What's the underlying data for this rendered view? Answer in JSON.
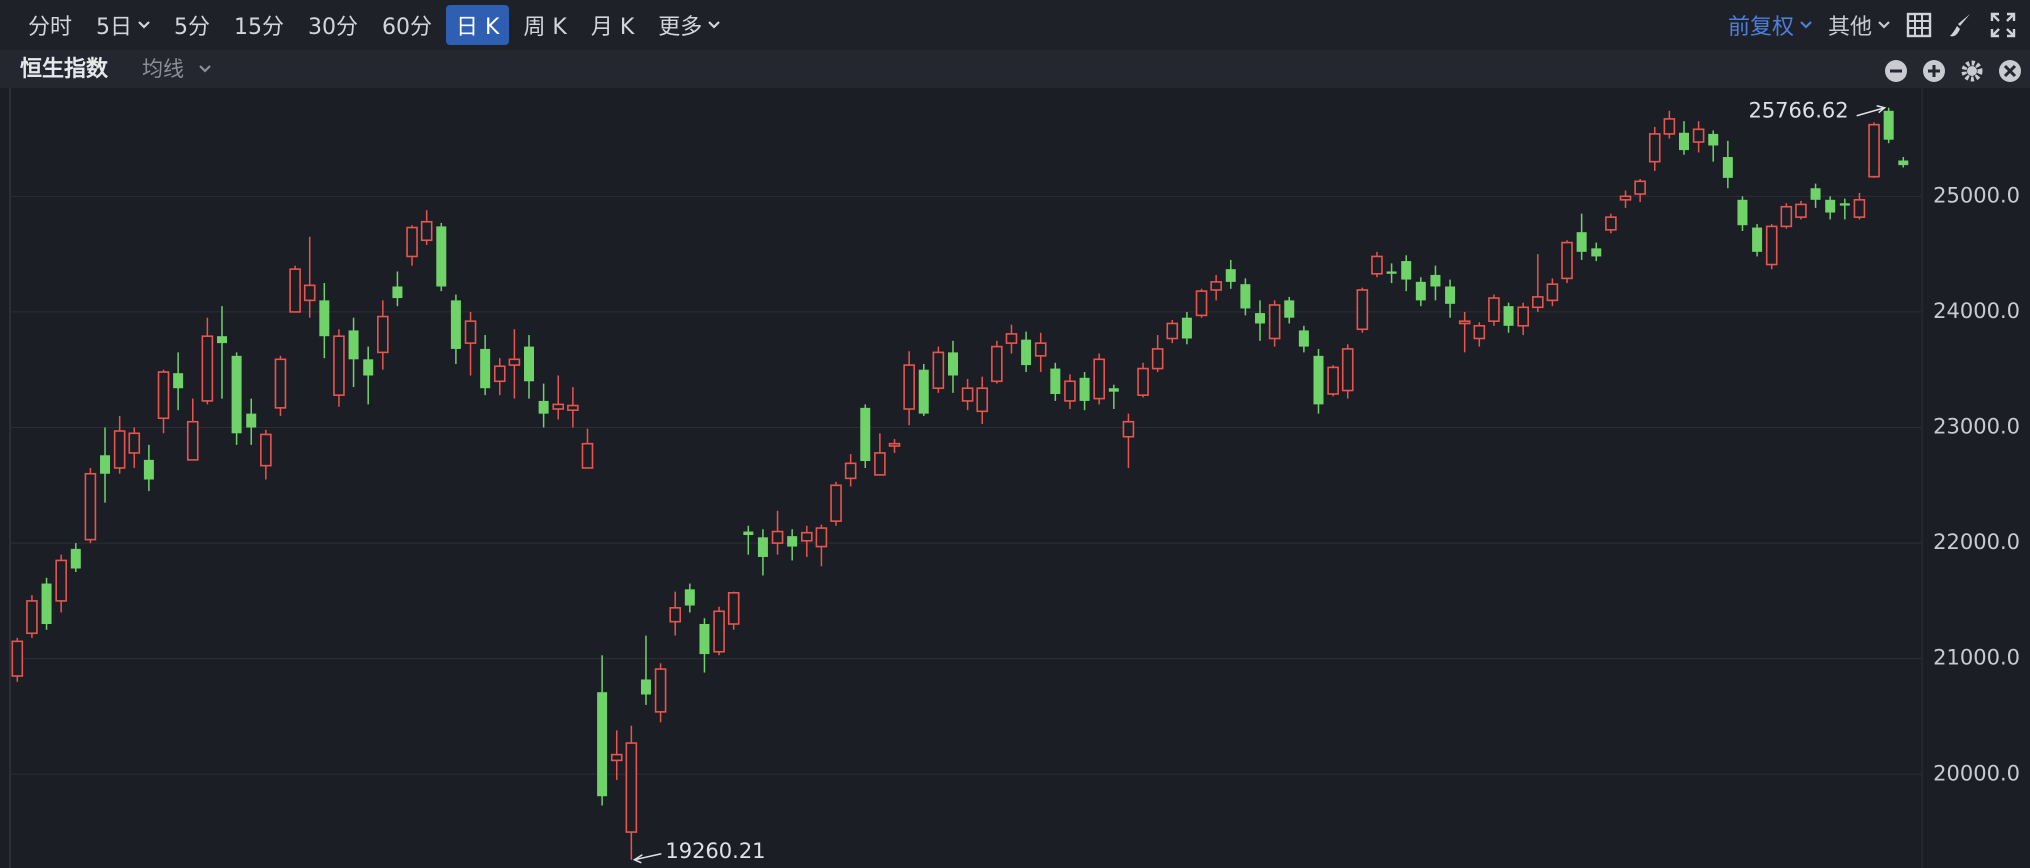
{
  "toolbar": {
    "periods": [
      {
        "label": "分时"
      },
      {
        "label": "5日",
        "dropdown": true
      },
      {
        "label": "5分"
      },
      {
        "label": "15分"
      },
      {
        "label": "30分"
      },
      {
        "label": "60分"
      },
      {
        "label": "日 K",
        "selected": true
      },
      {
        "label": "周 K"
      },
      {
        "label": "月 K"
      },
      {
        "label": "更多",
        "dropdown": true
      }
    ],
    "adjust": "前复权",
    "other": "其他"
  },
  "chart_data": {
    "type": "candlestick",
    "title": "恒生指数",
    "indicator": "均线",
    "up_color": "#e8554e",
    "down_color": "#6fd36a",
    "open": [
      20850,
      21220,
      21650,
      21500,
      21950,
      22030,
      22760,
      22650,
      22780,
      22720,
      23080,
      23470,
      22720,
      23230,
      23790,
      23620,
      23120,
      22670,
      23170,
      24000,
      24100,
      24100,
      23280,
      23840,
      23590,
      23650,
      24220,
      24480,
      24620,
      24740,
      24100,
      23730,
      23680,
      23400,
      23540,
      23700,
      23230,
      23160,
      23150,
      22650,
      20710,
      20120,
      19500,
      20820,
      20540,
      21320,
      21600,
      21300,
      21060,
      21300,
      22100,
      22050,
      22000,
      22060,
      22020,
      21970,
      22190,
      22560,
      23170,
      22590,
      22840,
      23160,
      23500,
      23340,
      23650,
      23230,
      23140,
      23400,
      23730,
      23760,
      23620,
      23510,
      23230,
      23430,
      23250,
      23340,
      22920,
      23280,
      23510,
      23770,
      23950,
      23970,
      24190,
      24370,
      24240,
      23990,
      23770,
      24100,
      23840,
      23620,
      23290,
      23320,
      23850,
      24330,
      24350,
      24440,
      24260,
      24320,
      24220,
      23900,
      23770,
      23920,
      24050,
      23880,
      24040,
      24100,
      24290,
      24690,
      24550,
      24710,
      24970,
      25020,
      25300,
      25540,
      25550,
      25470,
      25540,
      25340,
      24970,
      24730,
      24410,
      24740,
      24820,
      25070,
      24970,
      24940,
      24820,
      25170,
      25740,
      25310
    ],
    "high": [
      21180,
      21550,
      21700,
      21900,
      22000,
      22650,
      23000,
      23100,
      23000,
      22850,
      23500,
      23650,
      23250,
      23950,
      24050,
      23650,
      23250,
      22980,
      23620,
      24400,
      24650,
      24250,
      23850,
      23950,
      23700,
      24100,
      24350,
      24750,
      24880,
      24770,
      24150,
      24000,
      23800,
      23600,
      23850,
      23800,
      23380,
      23450,
      23350,
      22990,
      21030,
      20380,
      20420,
      21200,
      20960,
      21580,
      21650,
      21350,
      21450,
      21580,
      22150,
      22120,
      22280,
      22120,
      22150,
      22160,
      22530,
      22770,
      23200,
      22950,
      22900,
      23660,
      23550,
      23700,
      23750,
      23420,
      23440,
      23750,
      23890,
      23830,
      23820,
      23560,
      23460,
      23480,
      23640,
      23370,
      23120,
      23560,
      23800,
      23930,
      24000,
      24200,
      24320,
      24450,
      24290,
      24100,
      24100,
      24130,
      23880,
      23680,
      23540,
      23720,
      24210,
      24520,
      24420,
      24490,
      24300,
      24400,
      24280,
      24000,
      23910,
      24150,
      24080,
      24080,
      24500,
      24290,
      24620,
      24850,
      24600,
      24850,
      25050,
      25150,
      25600,
      25740,
      25650,
      25650,
      25570,
      25480,
      25000,
      24760,
      24760,
      24940,
      24960,
      25110,
      25000,
      24980,
      25030,
      25640,
      25766.62,
      25340
    ],
    "low": [
      20800,
      21180,
      21250,
      21400,
      21750,
      22000,
      22350,
      22600,
      22650,
      22450,
      22950,
      23150,
      22720,
      23200,
      23250,
      22850,
      22850,
      22550,
      23100,
      24000,
      23950,
      23600,
      23180,
      23350,
      23200,
      23500,
      24050,
      24400,
      24580,
      24180,
      23550,
      23450,
      23280,
      23280,
      23250,
      23250,
      23000,
      23070,
      23000,
      22650,
      19730,
      19950,
      19260.21,
      20600,
      20450,
      21200,
      21400,
      20880,
      21030,
      21250,
      21900,
      21720,
      21900,
      21850,
      21880,
      21800,
      22150,
      22490,
      22650,
      22590,
      22780,
      23020,
      23100,
      23300,
      23300,
      23150,
      23030,
      23380,
      23640,
      23480,
      23480,
      23230,
      23160,
      23150,
      23200,
      23160,
      22650,
      23260,
      23480,
      23730,
      23720,
      23950,
      24100,
      24200,
      23970,
      23750,
      23700,
      23900,
      23650,
      23120,
      23270,
      23250,
      23820,
      24300,
      24250,
      24180,
      24050,
      24100,
      23950,
      23650,
      23700,
      23880,
      23820,
      23800,
      24000,
      24050,
      24250,
      24450,
      24440,
      24680,
      24900,
      24950,
      25220,
      25500,
      25360,
      25380,
      25300,
      25070,
      24700,
      24480,
      24370,
      24720,
      24800,
      24900,
      24800,
      24800,
      24800,
      25160,
      25460,
      25250
    ],
    "close": [
      21150,
      21500,
      21300,
      21850,
      21780,
      22600,
      22600,
      22970,
      22950,
      22550,
      23480,
      23340,
      23050,
      23790,
      23730,
      22950,
      23000,
      22940,
      23590,
      24370,
      24230,
      23790,
      23790,
      23590,
      23450,
      23960,
      24120,
      24730,
      24780,
      24220,
      23680,
      23920,
      23340,
      23530,
      23590,
      23400,
      23120,
      23200,
      23190,
      22860,
      19810,
      20170,
      20270,
      20690,
      20910,
      21440,
      21460,
      21040,
      21410,
      21570,
      22070,
      21880,
      22100,
      21970,
      22090,
      22130,
      22500,
      22690,
      22710,
      22780,
      22860,
      23540,
      23120,
      23650,
      23450,
      23340,
      23340,
      23700,
      23810,
      23540,
      23730,
      23290,
      23400,
      23230,
      23590,
      23310,
      23050,
      23510,
      23680,
      23900,
      23770,
      24180,
      24260,
      24260,
      24030,
      23900,
      24060,
      23950,
      23700,
      23200,
      23520,
      23680,
      24190,
      24480,
      24330,
      24280,
      24100,
      24220,
      24070,
      23920,
      23880,
      24120,
      23880,
      24040,
      24130,
      24240,
      24600,
      24520,
      24480,
      24820,
      25000,
      25130,
      25540,
      25670,
      25400,
      25580,
      25440,
      25160,
      24750,
      24520,
      24740,
      24910,
      24930,
      24970,
      24860,
      24920,
      24970,
      25620,
      25490,
      25270
    ],
    "ylim": [
      19215,
      25920
    ],
    "yticks": [
      {
        "value": 20000,
        "label": "20000.0"
      },
      {
        "value": 21000,
        "label": "21000.0"
      },
      {
        "value": 22000,
        "label": "22000.0"
      },
      {
        "value": 23000,
        "label": "23000.0"
      },
      {
        "value": 24000,
        "label": "24000.0"
      },
      {
        "value": 25000,
        "label": "25000.0"
      }
    ],
    "grid": true
  }
}
